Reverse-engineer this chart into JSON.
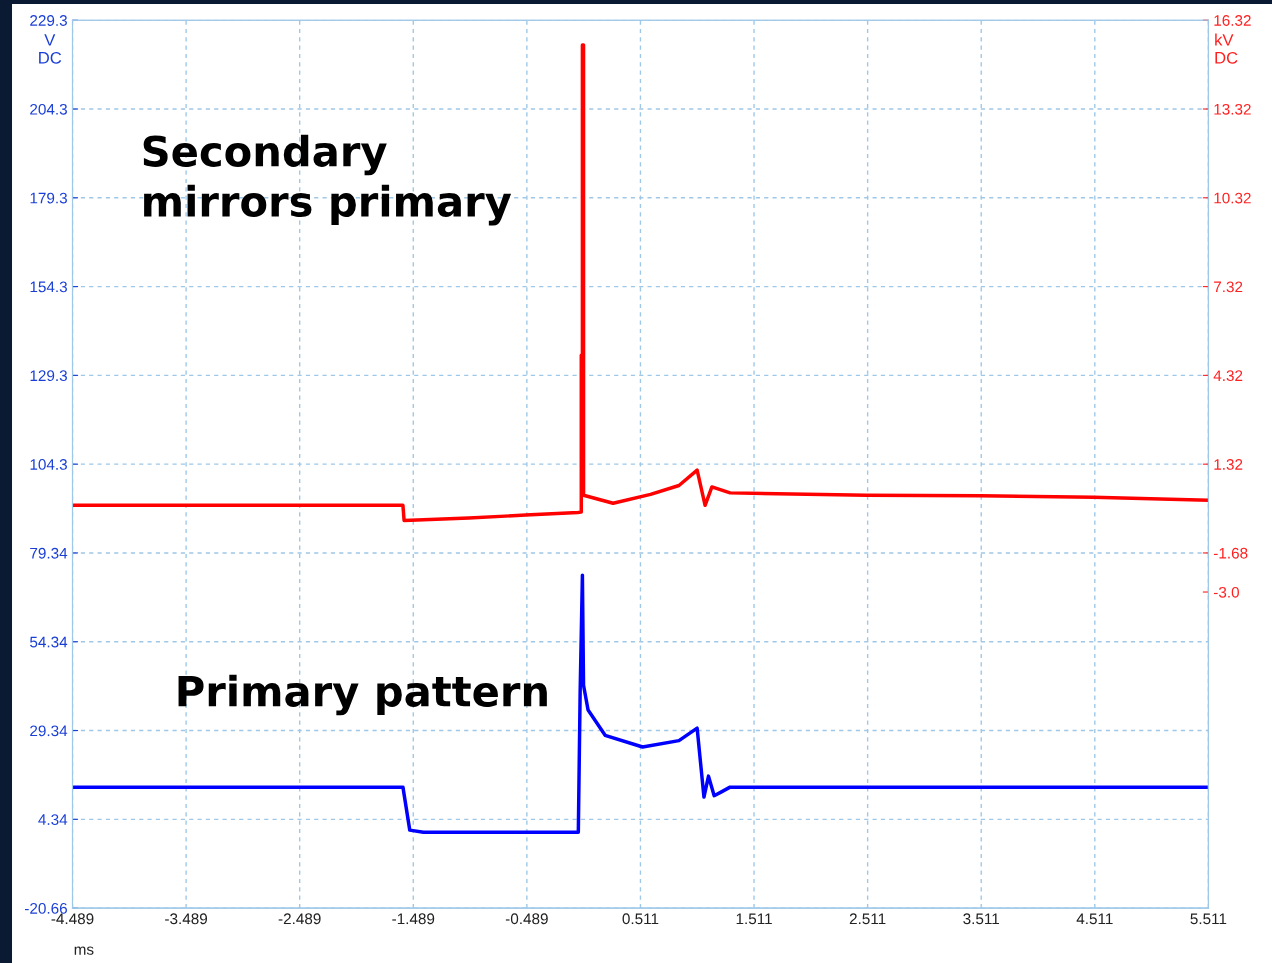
{
  "chart_data": {
    "type": "line",
    "xlabel": "ms",
    "ylabel": "V\nDC",
    "y2label": "kV\nDC",
    "annotations": [
      "Secondary\nmirrors primary",
      "Primary pattern"
    ],
    "xlim": [
      -4.489,
      5.511
    ],
    "xticks": [
      -4.489,
      -3.489,
      -2.489,
      -1.489,
      -0.489,
      0.511,
      1.511,
      2.511,
      3.511,
      4.511,
      5.511
    ],
    "ylim": [
      -20.66,
      229.34
    ],
    "yticks": [
      -20.66,
      4.34,
      29.34,
      54.34,
      79.34,
      {
        "value": 104.34,
        "label": "104.3"
      },
      {
        "value": 129.34,
        "label": "129.3"
      },
      {
        "value": 154.34,
        "label": "154.3"
      },
      {
        "value": 179.34,
        "label": "179.3"
      },
      {
        "value": 204.34,
        "label": "204.3"
      },
      {
        "value": 229.34,
        "label": "229.3"
      }
    ],
    "y2lim": [
      -13.68,
      16.32
    ],
    "y2ticks": [
      -1.68,
      {
        "value": -3.0,
        "label": "-3.0"
      },
      1.32,
      4.32,
      7.32,
      10.32,
      13.32,
      16.32
    ],
    "grid": true,
    "marker": "none",
    "line_style": "solid",
    "series": [
      {
        "color": "#ff0000",
        "axis": "y2",
        "x": [
          -4.489,
          -1.58,
          -1.57,
          -1.0,
          -0.5,
          -0.04,
          -0.01,
          -0.01,
          0.0,
          0.0,
          0.01,
          0.01,
          0.27,
          0.6,
          0.85,
          1.01,
          1.08,
          1.14,
          1.3,
          2.5,
          3.5,
          4.5,
          5.511
        ],
        "values": [
          -0.07,
          -0.07,
          -0.58,
          -0.5,
          -0.4,
          -0.31,
          -0.3,
          5.0,
          5.0,
          15.48,
          15.48,
          0.27,
          0.0,
          0.3,
          0.6,
          1.12,
          -0.07,
          0.55,
          0.35,
          0.27,
          0.25,
          0.2,
          0.1
        ]
      },
      {
        "color": "#0000ff",
        "axis": "y",
        "x": [
          -4.489,
          -1.58,
          -1.52,
          -1.4,
          -0.036,
          -0.02,
          0.0,
          0.01,
          0.05,
          0.2,
          0.53,
          0.85,
          1.01,
          1.07,
          1.11,
          1.16,
          1.22,
          1.3,
          5.511
        ],
        "values": [
          13.4,
          13.4,
          1.3,
          0.7,
          0.7,
          40.0,
          73.1,
          42.1,
          35.1,
          28.0,
          24.7,
          26.5,
          30.0,
          10.6,
          16.5,
          11.0,
          12.0,
          13.4,
          13.4
        ]
      }
    ]
  }
}
